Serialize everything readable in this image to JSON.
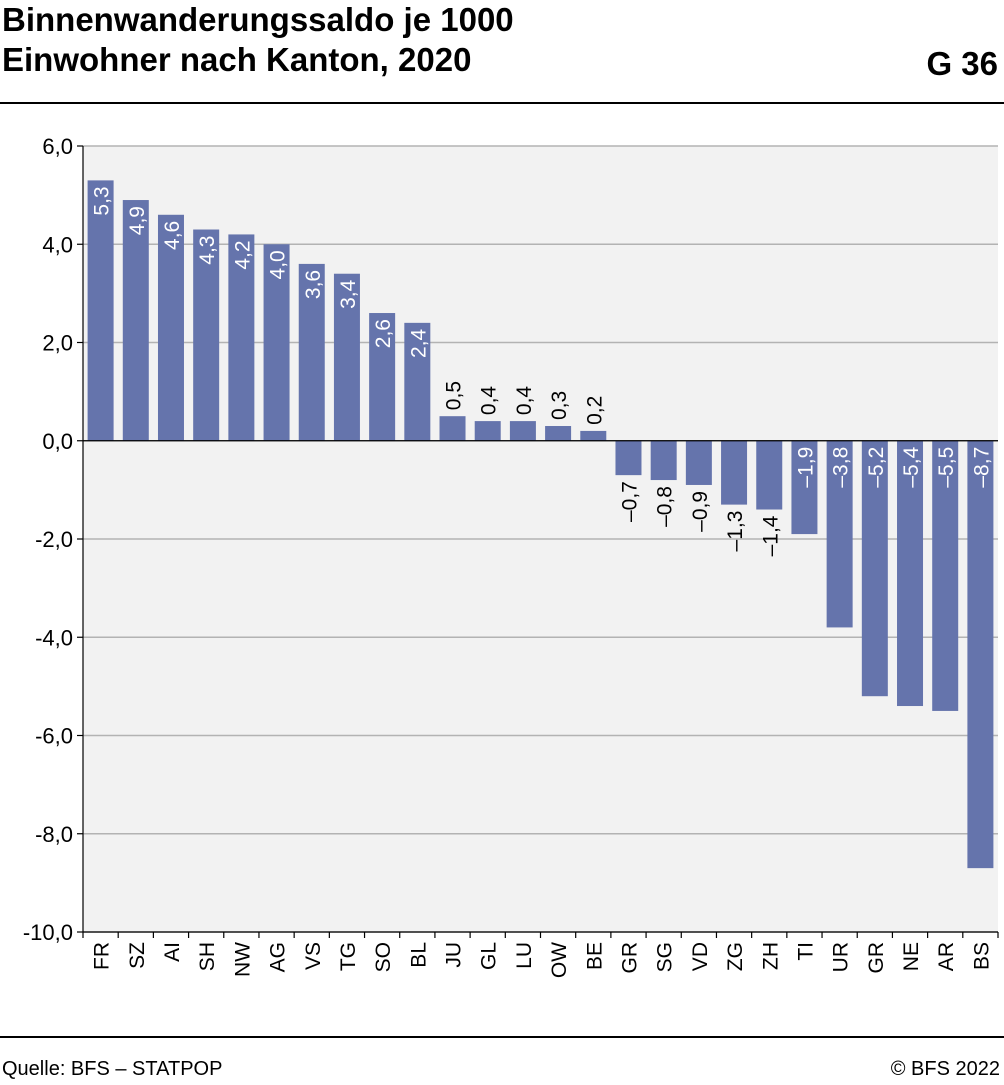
{
  "header": {
    "title_line1": "Binnenwanderungssaldo je 1000",
    "title_line2": "Einwohner nach Kanton, 2020",
    "code": "G 36"
  },
  "footer": {
    "source": "Quelle: BFS – STATPOP",
    "copyright": "© BFS 2022"
  },
  "colors": {
    "bar": "#6574ac",
    "plot_bg": "#f2f2f2",
    "grid": "#b3b3b3"
  },
  "chart_data": {
    "type": "bar",
    "title": "Binnenwanderungssaldo je 1000 Einwohner nach Kanton, 2020",
    "xlabel": "",
    "ylabel": "",
    "ylim": [
      -10,
      6
    ],
    "yticks": [
      6,
      4,
      2,
      0,
      -2,
      -4,
      -6,
      -8,
      -10
    ],
    "ytick_labels": [
      "6,0",
      "4,0",
      "2,0",
      "0,0",
      "-2,0",
      "-4,0",
      "-6,0",
      "-8,0",
      "-10,0"
    ],
    "grid": true,
    "categories": [
      "FR",
      "SZ",
      "AI",
      "SH",
      "NW",
      "AG",
      "VS",
      "TG",
      "SO",
      "BL",
      "JU",
      "GL",
      "LU",
      "OW",
      "BE",
      "GR",
      "SG",
      "VD",
      "ZG",
      "ZH",
      "TI",
      "UR",
      "GR",
      "NE",
      "AR",
      "BS"
    ],
    "values": [
      5.3,
      4.9,
      4.6,
      4.3,
      4.2,
      4.0,
      3.6,
      3.4,
      2.6,
      2.4,
      0.5,
      0.4,
      0.4,
      0.3,
      0.2,
      -0.7,
      -0.8,
      -0.9,
      -1.3,
      -1.4,
      -1.9,
      -3.8,
      -5.2,
      -5.4,
      -5.5,
      -8.7
    ],
    "value_labels": [
      "5,3",
      "4,9",
      "4,6",
      "4,3",
      "4,2",
      "4,0",
      "3,6",
      "3,4",
      "2,6",
      "2,4",
      "0,5",
      "0,4",
      "0,4",
      "0,3",
      "0,2",
      "–0,7",
      "–0,8",
      "–0,9",
      "–1,3",
      "–1,4",
      "–1,9",
      "–3,8",
      "–5,2",
      "–5,4",
      "–5,5",
      "–8,7"
    ]
  }
}
